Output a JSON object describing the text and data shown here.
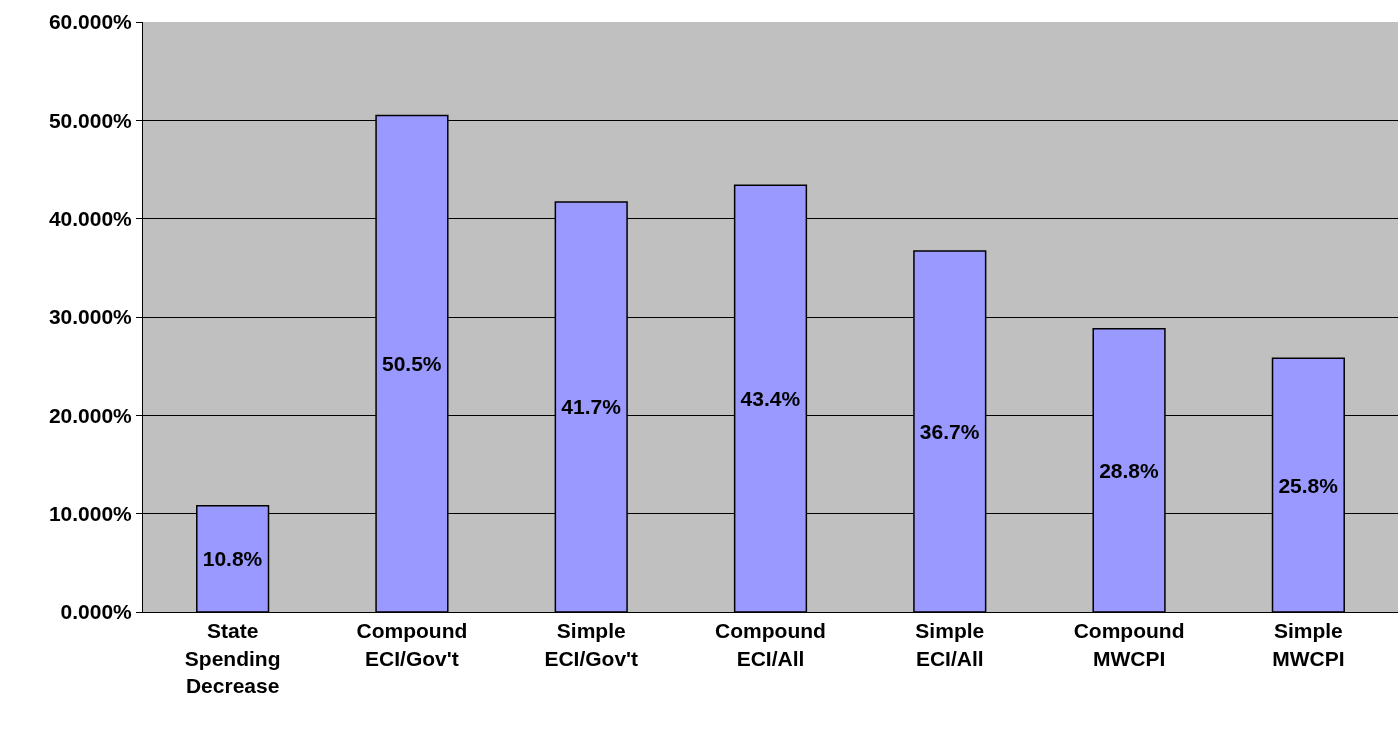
{
  "chart_data": {
    "type": "bar",
    "categories": [
      "State Spending Decrease",
      "Compound ECI/Gov't",
      "Simple ECI/Gov't",
      "Compound ECI/All",
      "Simple ECI/All",
      "Compound MWCPI",
      "Simple MWCPI"
    ],
    "values": [
      10.8,
      50.5,
      41.7,
      43.4,
      36.7,
      28.8,
      25.8
    ],
    "value_labels": [
      "10.8%",
      "50.5%",
      "41.7%",
      "43.4%",
      "36.7%",
      "28.8%",
      "25.8%"
    ],
    "color": "#9999ff",
    "ylim": [
      0,
      60
    ],
    "yticks": [
      {
        "value": 0,
        "label": "0.000%"
      },
      {
        "value": 10,
        "label": "10.000%"
      },
      {
        "value": 20,
        "label": "20.000%"
      },
      {
        "value": 30,
        "label": "30.000%"
      },
      {
        "value": 40,
        "label": "40.000%"
      },
      {
        "value": 50,
        "label": "50.000%"
      },
      {
        "value": 60,
        "label": "60.000%"
      }
    ],
    "grid": "y"
  }
}
